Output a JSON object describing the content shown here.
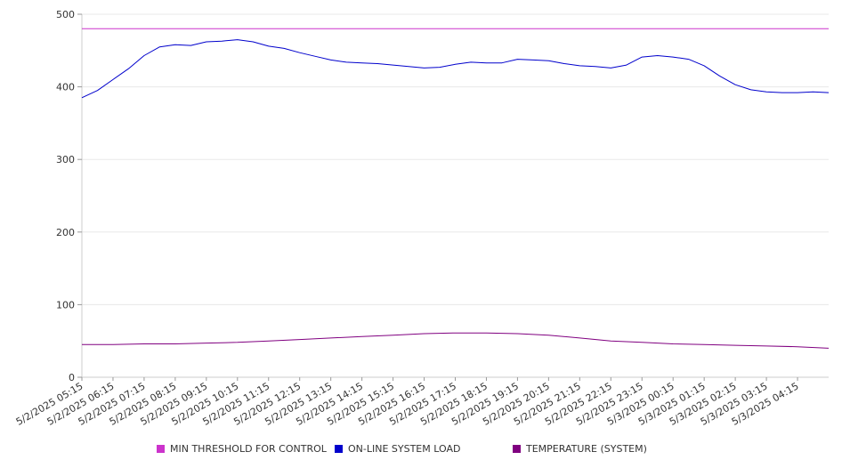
{
  "chart_data": {
    "type": "line",
    "title": "",
    "xlabel": "",
    "ylabel": "",
    "ylim": [
      0,
      500
    ],
    "yticks": [
      0,
      100,
      200,
      300,
      400,
      500
    ],
    "grid": true,
    "legend_position": "bottom",
    "x_labels": [
      "5/2/2025 05:15",
      "5/2/2025 06:15",
      "5/2/2025 07:15",
      "5/2/2025 08:15",
      "5/2/2025 09:15",
      "5/2/2025 10:15",
      "5/2/2025 11:15",
      "5/2/2025 12:15",
      "5/2/2025 13:15",
      "5/2/2025 14:15",
      "5/2/2025 15:15",
      "5/2/2025 16:15",
      "5/2/2025 17:15",
      "5/2/2025 18:15",
      "5/2/2025 19:15",
      "5/2/2025 20:15",
      "5/2/2025 21:15",
      "5/2/2025 22:15",
      "5/2/2025 23:15",
      "5/3/2025 00:15",
      "5/3/2025 01:15",
      "5/3/2025 02:15",
      "5/3/2025 03:15",
      "5/3/2025 04:15"
    ],
    "x_range": [
      0,
      24
    ],
    "series": [
      {
        "name": "MIN THRESHOLD FOR CONTROL",
        "color": "#cc33cc",
        "x": [
          0,
          24
        ],
        "values": [
          480,
          480
        ]
      },
      {
        "name": "ON-LINE SYSTEM LOAD",
        "color": "#0000cc",
        "x": [
          0,
          0.5,
          1,
          1.5,
          2,
          2.5,
          3,
          3.5,
          4,
          4.5,
          5,
          5.5,
          6,
          6.5,
          7,
          7.5,
          8,
          8.5,
          9,
          9.5,
          10,
          10.5,
          11,
          11.5,
          12,
          12.5,
          13,
          13.5,
          14,
          14.5,
          15,
          15.5,
          16,
          16.5,
          17,
          17.5,
          18,
          18.5,
          19,
          19.5,
          20,
          20.5,
          21,
          21.5,
          22,
          22.5,
          23,
          23.5,
          24
        ],
        "values": [
          385,
          395,
          410,
          425,
          443,
          455,
          458,
          457,
          462,
          463,
          465,
          462,
          456,
          453,
          447,
          442,
          437,
          434,
          433,
          432,
          430,
          428,
          426,
          427,
          431,
          434,
          433,
          433,
          438,
          437,
          436,
          432,
          429,
          428,
          426,
          430,
          441,
          443,
          441,
          438,
          429,
          415,
          403,
          396,
          393,
          392,
          392,
          393,
          392
        ]
      },
      {
        "name": "TEMPERATURE (SYSTEM)",
        "color": "#800080",
        "x": [
          0,
          1,
          2,
          3,
          4,
          5,
          6,
          7,
          8,
          9,
          10,
          11,
          12,
          13,
          14,
          15,
          16,
          17,
          18,
          19,
          20,
          21,
          22,
          23,
          24
        ],
        "values": [
          45,
          45,
          46,
          46,
          47,
          48,
          50,
          52,
          54,
          56,
          58,
          60,
          61,
          61,
          60,
          58,
          54,
          50,
          48,
          46,
          45,
          44,
          43,
          42,
          40
        ]
      }
    ]
  }
}
